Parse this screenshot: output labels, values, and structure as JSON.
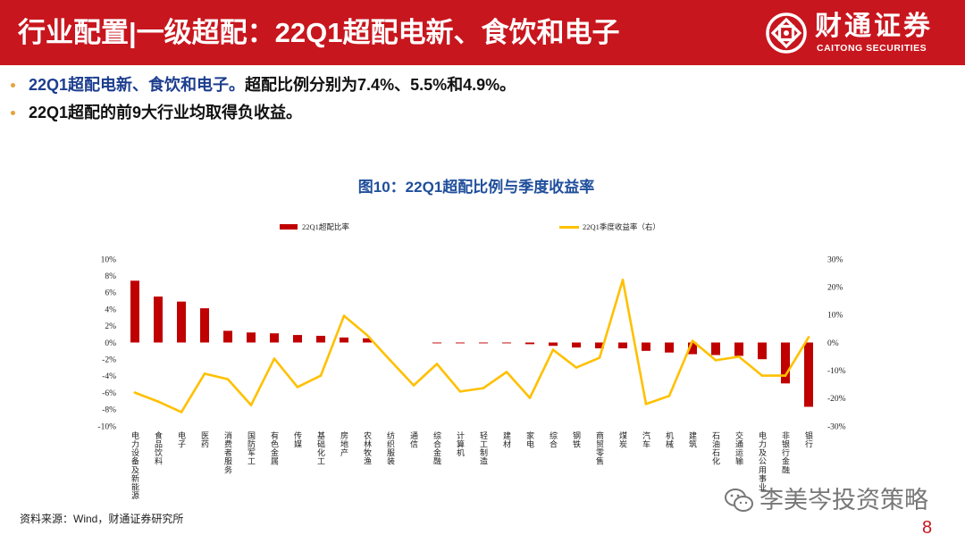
{
  "header": {
    "title": "行业配置|一级超配：22Q1超配电新、食饮和电子",
    "background_color": "#C8161E",
    "logo": {
      "emblem_icon": "caitong-emblem-icon",
      "name_cn": "财通证券",
      "name_en": "CAITONG SECURITIES"
    }
  },
  "bullets": [
    {
      "highlight": "22Q1超配电新、食饮和电子。",
      "text": "超配比例分别为7.4%、5.5%和4.9%。"
    },
    {
      "text": "22Q1超配的前9大行业均取得负收益。"
    }
  ],
  "theme": {
    "highlight_blue": "#1D3E8F",
    "bullet_color": "#E6A23C"
  },
  "chart_data": {
    "type": "bar",
    "title": "图10：22Q1超配比例与季度收益率",
    "xlabel": "",
    "ylabel": "",
    "grid": false,
    "legend_position": "top",
    "categories": [
      "电力设备及新能源",
      "食品饮料",
      "电子",
      "医药",
      "消费者服务",
      "国防军工",
      "有色金属",
      "传媒",
      "基础化工",
      "房地产",
      "农林牧渔",
      "纺织服装",
      "通信",
      "综合金融",
      "计算机",
      "轻工制造",
      "建材",
      "家电",
      "综合",
      "钢铁",
      "商贸零售",
      "煤炭",
      "汽车",
      "机械",
      "建筑",
      "石油石化",
      "交通运输",
      "电力及公用事业",
      "非银行金融",
      "银行"
    ],
    "series": [
      {
        "name": "22Q1超配比率",
        "type": "bar",
        "y_axis": "left",
        "color": "#C00000",
        "values": [
          7.4,
          5.5,
          4.9,
          4.1,
          1.4,
          1.2,
          1.1,
          0.9,
          0.8,
          0.6,
          0.5,
          0.0,
          0.0,
          -0.1,
          -0.1,
          -0.1,
          -0.1,
          -0.2,
          -0.4,
          -0.6,
          -0.7,
          -0.7,
          -1.0,
          -1.2,
          -1.4,
          -1.5,
          -1.6,
          -2.0,
          -4.9,
          -7.7
        ]
      },
      {
        "name": "22Q1季度收益率（右）",
        "type": "line",
        "y_axis": "right",
        "color": "#FFC000",
        "values": [
          -18.0,
          -21.2,
          -25.0,
          -11.2,
          -13.2,
          -22.5,
          -5.8,
          -16.0,
          -11.9,
          9.6,
          2.6,
          -6.5,
          -15.4,
          -7.7,
          -17.6,
          -16.4,
          -10.6,
          -19.9,
          -2.6,
          -9.0,
          -5.5,
          22.5,
          -22.1,
          -19.2,
          0.6,
          -6.4,
          -5.1,
          -11.9,
          -11.9,
          1.9
        ]
      }
    ],
    "y_left": {
      "ylim": [
        -10,
        10
      ],
      "ticks": [
        10,
        8,
        6,
        4,
        2,
        0,
        -2,
        -4,
        -6,
        -8,
        -10
      ],
      "tick_labels": [
        "10%",
        "8%",
        "6%",
        "4%",
        "2%",
        "0%",
        "-2%",
        "-4%",
        "-6%",
        "-8%",
        "-10%"
      ]
    },
    "y_right": {
      "ylim": [
        -30,
        30
      ],
      "ticks": [
        30,
        20,
        10,
        0,
        -10,
        -20,
        -30
      ],
      "tick_labels": [
        "30%",
        "20%",
        "10%",
        "0%",
        "-10%",
        "-20%",
        "-30%"
      ]
    }
  },
  "footer": {
    "source": "资料来源：Wind，财通证券研究所",
    "page_number": "8"
  },
  "watermark": {
    "icon": "wechat-icon",
    "text": "李美岑投资策略"
  }
}
